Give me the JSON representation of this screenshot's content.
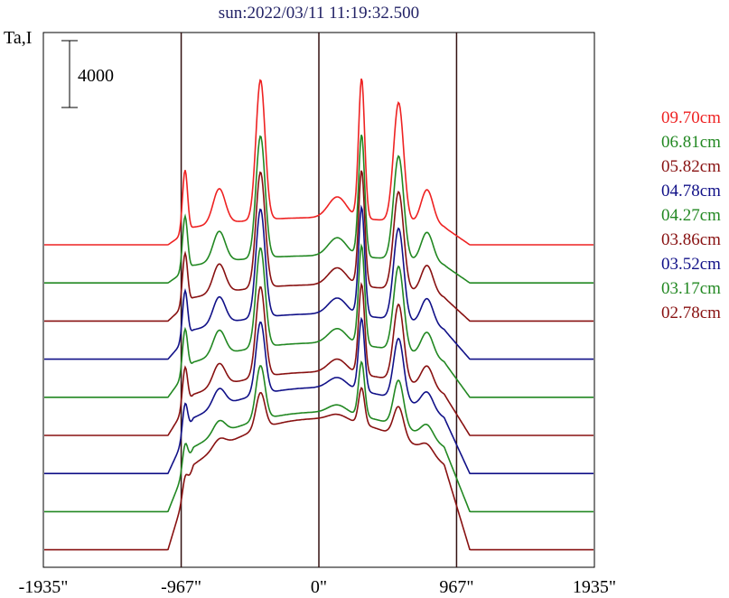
{
  "chart_data": {
    "type": "line",
    "title": "sun:2022/03/11 11:19:32.500",
    "ylabel": "Ta,I",
    "scale_bar_label": "4000",
    "x_ticks": [
      {
        "value": -1935,
        "label": "-1935\""
      },
      {
        "value": -967,
        "label": "-967\""
      },
      {
        "value": 0,
        "label": "0\""
      },
      {
        "value": 967,
        "label": "967\""
      },
      {
        "value": 1935,
        "label": "1935\""
      }
    ],
    "xlim": [
      -1935,
      1935
    ],
    "vertical_lines": [
      -967,
      0,
      967
    ],
    "series": [
      {
        "name": "09.70cm",
        "color": "#ee2222"
      },
      {
        "name": "06.81cm",
        "color": "#228822"
      },
      {
        "name": "05.82cm",
        "color": "#881111"
      },
      {
        "name": "04.78cm",
        "color": "#111188"
      },
      {
        "name": "04.27cm",
        "color": "#228822"
      },
      {
        "name": "03.86cm",
        "color": "#881111"
      },
      {
        "name": "03.52cm",
        "color": "#111188"
      },
      {
        "name": "03.17cm",
        "color": "#228822"
      },
      {
        "name": "02.78cm",
        "color": "#881111"
      }
    ]
  }
}
